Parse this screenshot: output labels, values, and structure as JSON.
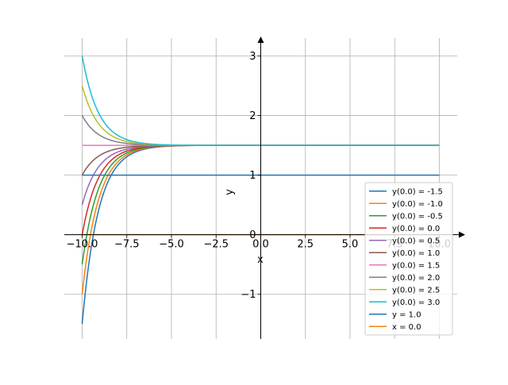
{
  "chart_data": {
    "type": "line",
    "xlabel": "x",
    "ylabel": "y",
    "xlim": [
      -11.0,
      11.0
    ],
    "ylim": [
      -1.75,
      3.3
    ],
    "x_ticks": [
      -10.0,
      -7.5,
      -5.0,
      -2.5,
      0.0,
      2.5,
      5.0,
      7.5,
      10.0
    ],
    "x_tick_labels": [
      "−10.0",
      "−7.5",
      "−5.0",
      "−2.5",
      "0.0",
      "2.5",
      "5.0",
      "7.5",
      "10.0"
    ],
    "y_ticks": [
      -1,
      0,
      1,
      2,
      3
    ],
    "y_tick_labels": [
      "−1",
      "0",
      "1",
      "2",
      "3"
    ],
    "grid": true,
    "legend_position": "bottom-right",
    "x_range": [
      -10.0,
      10.0
    ],
    "series": [
      {
        "name": "y(0.0) = -1.5",
        "kind": "solution",
        "initial": -1.5,
        "equilibrium": 1.5,
        "rate": 1.1,
        "color": "#1f77b4"
      },
      {
        "name": "y(0.0) = -1.0",
        "kind": "solution",
        "initial": -1.0,
        "equilibrium": 1.5,
        "rate": 1.1,
        "color": "#ff7f0e"
      },
      {
        "name": "y(0.0) = -0.5",
        "kind": "solution",
        "initial": -0.5,
        "equilibrium": 1.5,
        "rate": 1.1,
        "color": "#2ca02c"
      },
      {
        "name": "y(0.0) = 0.0",
        "kind": "solution",
        "initial": 0.0,
        "equilibrium": 1.5,
        "rate": 1.1,
        "color": "#d62728"
      },
      {
        "name": "y(0.0) = 0.5",
        "kind": "solution",
        "initial": 0.5,
        "equilibrium": 1.5,
        "rate": 1.1,
        "color": "#9467bd"
      },
      {
        "name": "y(0.0) = 1.0",
        "kind": "solution",
        "initial": 1.0,
        "equilibrium": 1.5,
        "rate": 1.1,
        "color": "#8c564b"
      },
      {
        "name": "y(0.0) = 1.5",
        "kind": "solution",
        "initial": 1.5,
        "equilibrium": 1.5,
        "rate": 1.1,
        "color": "#e377c2"
      },
      {
        "name": "y(0.0) = 2.0",
        "kind": "solution",
        "initial": 2.0,
        "equilibrium": 1.5,
        "rate": 1.1,
        "color": "#7f7f7f"
      },
      {
        "name": "y(0.0) = 2.5",
        "kind": "solution",
        "initial": 2.5,
        "equilibrium": 1.5,
        "rate": 1.1,
        "color": "#bcbd22"
      },
      {
        "name": "y(0.0) = 3.0",
        "kind": "solution",
        "initial": 3.0,
        "equilibrium": 1.5,
        "rate": 1.1,
        "color": "#17becf"
      },
      {
        "name": "y = 1.0",
        "kind": "horizontal",
        "value": 1.0,
        "color": "#1f77b4"
      },
      {
        "name": "x = 0.0",
        "kind": "horizontal",
        "value": 0.0,
        "color": "#ff7f0e"
      }
    ]
  }
}
